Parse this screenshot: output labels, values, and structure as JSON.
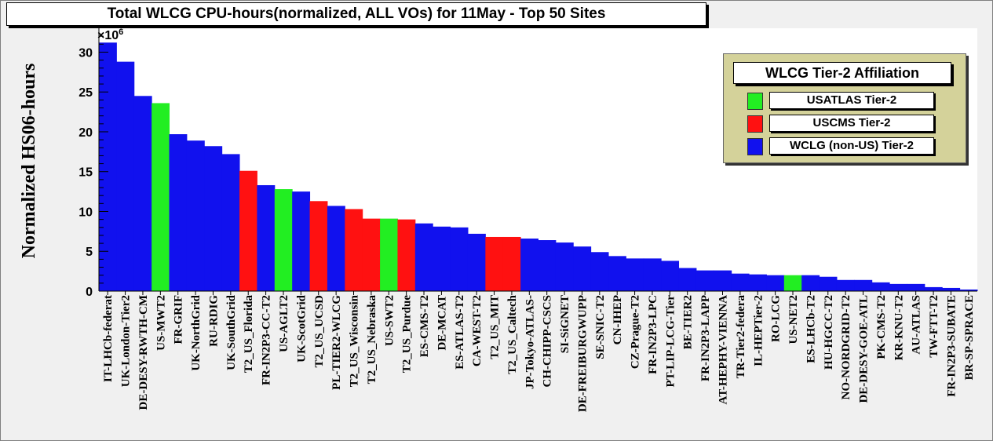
{
  "title": "Total WLCG CPU-hours(normalized, ALL VOs) for 11May - Top 50 Sites",
  "colors": {
    "USATLAS Tier-2": "#22ee22",
    "USCMS Tier-2": "#ff1111",
    "WCLG (non-US) Tier-2": "#1111ee"
  },
  "legend": {
    "title": "WLCG Tier-2 Affiliation",
    "entries": [
      "USATLAS Tier-2",
      "USCMS Tier-2",
      "WCLG (non-US) Tier-2"
    ]
  },
  "chart_data": {
    "type": "bar",
    "title": "Total WLCG CPU-hours(normalized, ALL VOs) for 11May - Top 50 Sites",
    "ylabel": "Normalized HS06-hours",
    "y_multiplier": "×10",
    "y_exponent": "6",
    "ylim": [
      0,
      33
    ],
    "yticks": [
      0,
      5,
      10,
      15,
      20,
      25,
      30
    ],
    "grid": false,
    "legend_position": "top-right",
    "categories": [
      "IT-LHCb-federat",
      "UK-London-Tier2",
      "DE-DESY-RWTH-CM",
      "US-MWT2",
      "FR-GRIF",
      "UK-NorthGrid",
      "RU-RDIG",
      "UK-SouthGrid",
      "T2_US_Florida",
      "FR-IN2P3-CC-T2",
      "US-AGLT2",
      "UK-ScotGrid",
      "T2_US_UCSD",
      "PL-TIER2-WLCG",
      "T2_US_Wisconsin",
      "T2_US_Nebraska",
      "US-SWT2",
      "T2_US_Purdue",
      "ES-CMS-T2",
      "DE-MCAT",
      "ES-ATLAS-T2",
      "CA-WEST-T2",
      "T2_US_MIT",
      "T2_US_Caltech",
      "JP-Tokyo-ATLAS-",
      "CH-CHIPP-CSCS",
      "SI-SiGNET",
      "DE-FREIBURGWUPP",
      "SE-SNIC-T2",
      "CN-IHEP",
      "CZ-Prague-T2",
      "FR-IN2P3-LPC",
      "PT-LIP-LCG-Tier",
      "BE-TIER2",
      "FR-IN2P3-LAPP",
      "AT-HEPHY-VIENNA",
      "TR-Tier2-federa",
      "IL-HEPTier-2",
      "RO-LCG",
      "US-NET2",
      "ES-LHCb-T2",
      "HU-HGCC-T2",
      "NO-NORDGRID-T2",
      "DE-DESY-GOE-ATL",
      "PK-CMS-T2",
      "KR-KNU-T2",
      "AU-ATLAS",
      "TW-FTT-T2",
      "FR-IN2P3-SUBATE",
      "BR-SP-SPRACE"
    ],
    "values": [
      31.2,
      28.8,
      24.5,
      23.6,
      19.7,
      18.9,
      18.2,
      17.2,
      15.1,
      13.3,
      12.8,
      12.5,
      11.3,
      10.7,
      10.3,
      9.1,
      9.1,
      9.0,
      8.5,
      8.1,
      8.0,
      7.2,
      6.8,
      6.8,
      6.6,
      6.4,
      6.1,
      5.6,
      4.9,
      4.4,
      4.1,
      4.1,
      3.8,
      2.9,
      2.6,
      2.6,
      2.2,
      2.1,
      2.0,
      2.0,
      2.0,
      1.8,
      1.4,
      1.4,
      1.1,
      0.9,
      0.9,
      0.5,
      0.4,
      0.2
    ],
    "affiliation": [
      "WCLG (non-US) Tier-2",
      "WCLG (non-US) Tier-2",
      "WCLG (non-US) Tier-2",
      "USATLAS Tier-2",
      "WCLG (non-US) Tier-2",
      "WCLG (non-US) Tier-2",
      "WCLG (non-US) Tier-2",
      "WCLG (non-US) Tier-2",
      "USCMS Tier-2",
      "WCLG (non-US) Tier-2",
      "USATLAS Tier-2",
      "WCLG (non-US) Tier-2",
      "USCMS Tier-2",
      "WCLG (non-US) Tier-2",
      "USCMS Tier-2",
      "USCMS Tier-2",
      "USATLAS Tier-2",
      "USCMS Tier-2",
      "WCLG (non-US) Tier-2",
      "WCLG (non-US) Tier-2",
      "WCLG (non-US) Tier-2",
      "WCLG (non-US) Tier-2",
      "USCMS Tier-2",
      "USCMS Tier-2",
      "WCLG (non-US) Tier-2",
      "WCLG (non-US) Tier-2",
      "WCLG (non-US) Tier-2",
      "WCLG (non-US) Tier-2",
      "WCLG (non-US) Tier-2",
      "WCLG (non-US) Tier-2",
      "WCLG (non-US) Tier-2",
      "WCLG (non-US) Tier-2",
      "WCLG (non-US) Tier-2",
      "WCLG (non-US) Tier-2",
      "WCLG (non-US) Tier-2",
      "WCLG (non-US) Tier-2",
      "WCLG (non-US) Tier-2",
      "WCLG (non-US) Tier-2",
      "WCLG (non-US) Tier-2",
      "USATLAS Tier-2",
      "WCLG (non-US) Tier-2",
      "WCLG (non-US) Tier-2",
      "WCLG (non-US) Tier-2",
      "WCLG (non-US) Tier-2",
      "WCLG (non-US) Tier-2",
      "WCLG (non-US) Tier-2",
      "WCLG (non-US) Tier-2",
      "WCLG (non-US) Tier-2",
      "WCLG (non-US) Tier-2",
      "WCLG (non-US) Tier-2"
    ]
  }
}
